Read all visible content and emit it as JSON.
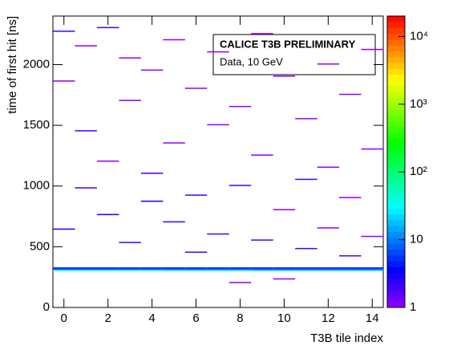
{
  "chart_data": {
    "type": "heatmap",
    "annotations": [
      "CALICE T3B PRELIMINARY",
      "Data, 10 GeV"
    ],
    "xlabel": "T3B tile index",
    "ylabel": "time of first hit [ns]",
    "xlim": [
      -0.5,
      14.5
    ],
    "xticks": [
      0,
      2,
      4,
      6,
      8,
      10,
      12,
      14
    ],
    "ylim": [
      0,
      2400
    ],
    "yticks": [
      0,
      500,
      1000,
      1500,
      2000
    ],
    "zlim": [
      1,
      20000
    ],
    "zlog": true,
    "zticks": [
      1,
      10,
      {
        "value": 100,
        "label": "10²"
      },
      {
        "value": 1000,
        "label": "10³"
      },
      {
        "value": 10000,
        "label": "10⁴"
      }
    ],
    "x": [
      0,
      1,
      2,
      3,
      4,
      5,
      6,
      7,
      8,
      9,
      10,
      11,
      12,
      13,
      14,
      0,
      1,
      2,
      3,
      4,
      5,
      6,
      7,
      8,
      9,
      10,
      11,
      12,
      13,
      14,
      0,
      1,
      2,
      3,
      4,
      5,
      6,
      7,
      8,
      9,
      10,
      11,
      12,
      13,
      14,
      0,
      0,
      0,
      1,
      1,
      1,
      2,
      2,
      2,
      3,
      3,
      3,
      4,
      4,
      4,
      5,
      5,
      5,
      6,
      6,
      6,
      7,
      7,
      7,
      8,
      8,
      8,
      9,
      9,
      9,
      10,
      10,
      10,
      11,
      11,
      11,
      12,
      12,
      12,
      13,
      13,
      13,
      14,
      14,
      14
    ],
    "y": [
      300,
      300,
      300,
      300,
      300,
      300,
      300,
      300,
      300,
      300,
      300,
      300,
      300,
      300,
      300,
      310,
      310,
      310,
      310,
      310,
      310,
      310,
      310,
      310,
      310,
      310,
      310,
      310,
      310,
      310,
      320,
      320,
      320,
      320,
      320,
      320,
      320,
      320,
      320,
      320,
      320,
      320,
      320,
      320,
      320,
      2270,
      1860,
      640,
      2150,
      1450,
      980,
      2300,
      1200,
      760,
      2050,
      1700,
      530,
      1950,
      1100,
      870,
      2200,
      1350,
      700,
      1800,
      920,
      450,
      2100,
      1500,
      600,
      1650,
      1000,
      200,
      2250,
      1250,
      550,
      1900,
      800,
      230,
      1550,
      1050,
      480,
      2000,
      1150,
      650,
      1750,
      900,
      420,
      2120,
      1300,
      580
    ],
    "values": [
      30,
      30,
      30,
      30,
      30,
      25,
      25,
      25,
      25,
      20,
      20,
      20,
      20,
      20,
      20,
      8,
      8,
      8,
      8,
      8,
      8,
      8,
      8,
      8,
      8,
      8,
      8,
      8,
      8,
      8,
      4,
      4,
      4,
      4,
      4,
      4,
      4,
      4,
      4,
      4,
      4,
      4,
      4,
      4,
      4,
      2,
      1,
      3,
      1,
      2,
      2,
      2,
      1,
      3,
      1,
      1,
      2,
      1,
      2,
      3,
      1,
      1,
      2,
      1,
      2,
      2,
      1,
      1,
      2,
      1,
      2,
      1,
      1,
      1,
      2,
      1,
      1,
      1,
      1,
      2,
      2,
      1,
      1,
      1,
      1,
      1,
      2,
      1,
      1,
      1
    ]
  }
}
